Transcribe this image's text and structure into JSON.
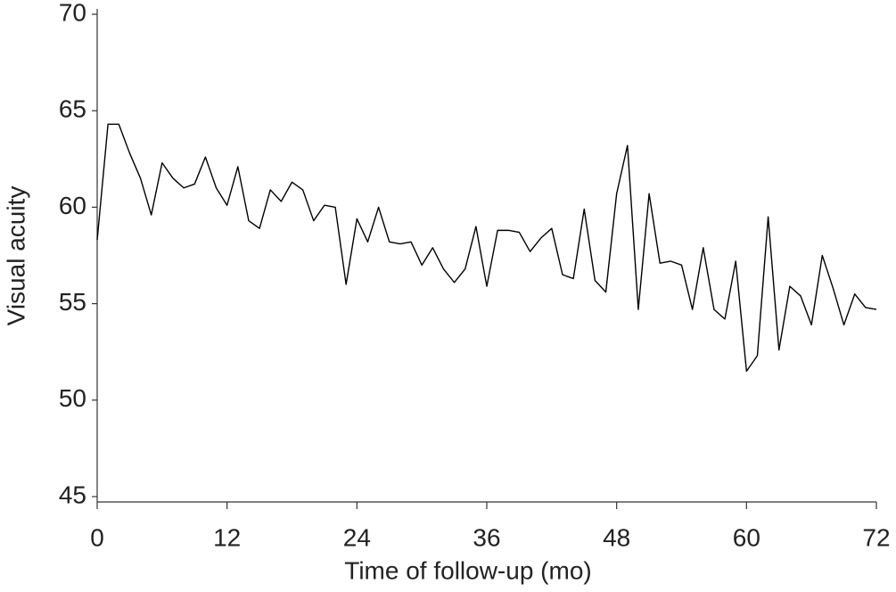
{
  "chart_data": {
    "type": "line",
    "x_label": "Time of follow-up (mo)",
    "y_label": "Visual acuity",
    "x": [
      0,
      1,
      2,
      3,
      4,
      5,
      6,
      7,
      8,
      9,
      10,
      11,
      12,
      13,
      14,
      15,
      16,
      17,
      18,
      19,
      20,
      21,
      22,
      23,
      24,
      25,
      26,
      27,
      28,
      29,
      30,
      31,
      32,
      33,
      34,
      35,
      36,
      37,
      38,
      39,
      40,
      41,
      42,
      43,
      44,
      45,
      46,
      47,
      48,
      49,
      50,
      51,
      52,
      53,
      54,
      55,
      56,
      57,
      58,
      59,
      60,
      61,
      62,
      63,
      64,
      65,
      66,
      67,
      68,
      69,
      70,
      71,
      72
    ],
    "series": [
      {
        "color": "#000000",
        "values": [
          58.3,
          64.3,
          64.3,
          62.8,
          61.5,
          59.6,
          62.3,
          61.5,
          61.0,
          61.2,
          62.6,
          61.0,
          60.1,
          62.1,
          59.3,
          58.9,
          60.9,
          60.3,
          61.3,
          60.9,
          59.3,
          60.1,
          60.0,
          56.0,
          59.4,
          58.2,
          60.0,
          58.2,
          58.1,
          58.2,
          57.0,
          57.9,
          56.8,
          56.1,
          56.8,
          59.0,
          55.9,
          58.8,
          58.8,
          58.7,
          57.7,
          58.4,
          58.9,
          56.5,
          56.3,
          59.9,
          56.2,
          55.6,
          60.7,
          63.2,
          54.7,
          60.7,
          57.1,
          57.2,
          57.0,
          54.7,
          57.9,
          54.7,
          54.2,
          57.2,
          51.5,
          52.3,
          59.5,
          52.6,
          55.9,
          55.4,
          53.9,
          57.5,
          55.8,
          53.9,
          55.5,
          54.8,
          54.7
        ]
      }
    ],
    "xlim": [
      0,
      72
    ],
    "xticks": [
      0,
      12,
      24,
      36,
      48,
      60,
      72
    ],
    "ylim": [
      45,
      70
    ],
    "yticks": [
      45,
      50,
      55,
      60,
      65,
      70
    ]
  }
}
